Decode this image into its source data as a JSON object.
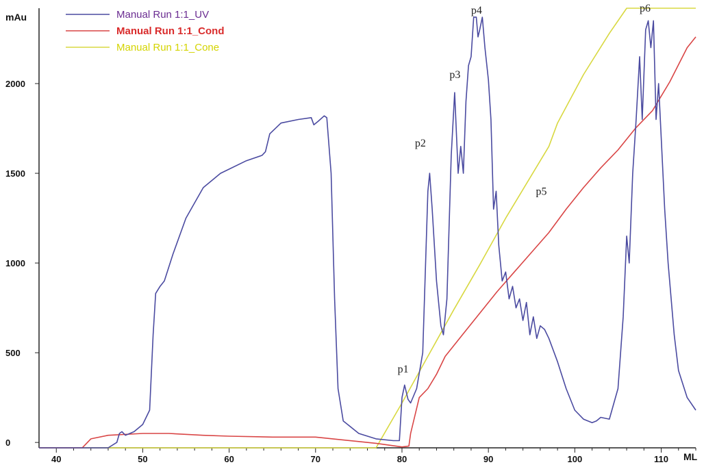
{
  "chart_data": {
    "type": "line",
    "title": "",
    "xlabel": "ML",
    "ylabel": "mAu",
    "xlim": [
      38,
      114
    ],
    "ylim": [
      -30,
      2420
    ],
    "x_ticks": [
      40,
      50,
      60,
      70,
      80,
      90,
      100,
      110
    ],
    "y_ticks": [
      0,
      500,
      1000,
      1500,
      2000
    ],
    "grid": false,
    "legend_position": "top-left",
    "series": [
      {
        "name": "Manual Run 1:1_UV",
        "color": "#4a4aa0",
        "legend_color": "#6a2c91",
        "points": [
          [
            38,
            -30
          ],
          [
            46,
            -30
          ],
          [
            47,
            0
          ],
          [
            47.3,
            50
          ],
          [
            47.6,
            60
          ],
          [
            48,
            40
          ],
          [
            49,
            60
          ],
          [
            50,
            100
          ],
          [
            50.8,
            180
          ],
          [
            51.2,
            600
          ],
          [
            51.5,
            830
          ],
          [
            52,
            870
          ],
          [
            52.5,
            900
          ],
          [
            53.5,
            1050
          ],
          [
            55,
            1250
          ],
          [
            57,
            1420
          ],
          [
            59,
            1500
          ],
          [
            62,
            1570
          ],
          [
            63.8,
            1600
          ],
          [
            64.2,
            1620
          ],
          [
            64.7,
            1720
          ],
          [
            66,
            1780
          ],
          [
            68,
            1800
          ],
          [
            69.5,
            1810
          ],
          [
            69.8,
            1770
          ],
          [
            70.3,
            1790
          ],
          [
            71,
            1820
          ],
          [
            71.3,
            1810
          ],
          [
            71.8,
            1500
          ],
          [
            72.2,
            800
          ],
          [
            72.6,
            300
          ],
          [
            73.2,
            120
          ],
          [
            75,
            50
          ],
          [
            77,
            20
          ],
          [
            79,
            10
          ],
          [
            79.7,
            10
          ],
          [
            80,
            250
          ],
          [
            80.3,
            320
          ],
          [
            80.7,
            240
          ],
          [
            81,
            220
          ],
          [
            81.7,
            300
          ],
          [
            82.4,
            500
          ],
          [
            83,
            1400
          ],
          [
            83.2,
            1500
          ],
          [
            83.5,
            1300
          ],
          [
            84,
            900
          ],
          [
            84.5,
            650
          ],
          [
            84.8,
            600
          ],
          [
            85.2,
            800
          ],
          [
            85.7,
            1600
          ],
          [
            86.1,
            1950
          ],
          [
            86.5,
            1500
          ],
          [
            86.8,
            1650
          ],
          [
            87.1,
            1500
          ],
          [
            87.4,
            1900
          ],
          [
            87.7,
            2100
          ],
          [
            88,
            2150
          ],
          [
            88.3,
            2370
          ],
          [
            88.6,
            2370
          ],
          [
            88.8,
            2260
          ],
          [
            89,
            2300
          ],
          [
            89.3,
            2370
          ],
          [
            89.6,
            2200
          ],
          [
            90,
            2020
          ],
          [
            90.3,
            1800
          ],
          [
            90.6,
            1300
          ],
          [
            90.9,
            1400
          ],
          [
            91.2,
            1100
          ],
          [
            91.6,
            900
          ],
          [
            92,
            950
          ],
          [
            92.4,
            800
          ],
          [
            92.8,
            870
          ],
          [
            93.2,
            750
          ],
          [
            93.6,
            800
          ],
          [
            94,
            680
          ],
          [
            94.4,
            780
          ],
          [
            94.8,
            600
          ],
          [
            95.2,
            700
          ],
          [
            95.6,
            580
          ],
          [
            96,
            650
          ],
          [
            96.5,
            630
          ],
          [
            97,
            580
          ],
          [
            98,
            450
          ],
          [
            99,
            300
          ],
          [
            100,
            180
          ],
          [
            101,
            130
          ],
          [
            102,
            110
          ],
          [
            102.5,
            120
          ],
          [
            103,
            140
          ],
          [
            104,
            130
          ],
          [
            105,
            300
          ],
          [
            105.6,
            700
          ],
          [
            106,
            1150
          ],
          [
            106.3,
            1000
          ],
          [
            106.7,
            1500
          ],
          [
            107.1,
            1800
          ],
          [
            107.5,
            2150
          ],
          [
            107.8,
            1800
          ],
          [
            108.2,
            2300
          ],
          [
            108.5,
            2350
          ],
          [
            108.8,
            2200
          ],
          [
            109.1,
            2350
          ],
          [
            109.4,
            1800
          ],
          [
            109.7,
            2000
          ],
          [
            110,
            1700
          ],
          [
            110.4,
            1300
          ],
          [
            110.8,
            1000
          ],
          [
            111.5,
            600
          ],
          [
            112,
            400
          ],
          [
            113,
            250
          ],
          [
            114,
            180
          ]
        ]
      },
      {
        "name": "Manual Run 1:1_Cond",
        "color": "#d94545",
        "legend_color": "#d92b2b",
        "points": [
          [
            38,
            -30
          ],
          [
            43,
            -30
          ],
          [
            44,
            20
          ],
          [
            46,
            40
          ],
          [
            50,
            50
          ],
          [
            53,
            50
          ],
          [
            57,
            40
          ],
          [
            60,
            35
          ],
          [
            65,
            30
          ],
          [
            70,
            30
          ],
          [
            72,
            20
          ],
          [
            75,
            5
          ],
          [
            77,
            -5
          ],
          [
            80,
            -25
          ],
          [
            80.8,
            -20
          ],
          [
            81,
            50
          ],
          [
            82,
            250
          ],
          [
            83,
            300
          ],
          [
            84,
            380
          ],
          [
            85,
            480
          ],
          [
            87,
            600
          ],
          [
            89,
            720
          ],
          [
            91,
            840
          ],
          [
            93,
            950
          ],
          [
            95,
            1060
          ],
          [
            97,
            1170
          ],
          [
            99,
            1300
          ],
          [
            101,
            1420
          ],
          [
            103,
            1530
          ],
          [
            105,
            1630
          ],
          [
            107,
            1750
          ],
          [
            109,
            1850
          ],
          [
            111,
            2010
          ],
          [
            113,
            2200
          ],
          [
            114,
            2260
          ]
        ]
      },
      {
        "name": "Manual Run 1:1_Cone",
        "color": "#d8d840",
        "legend_color": "#d4d400",
        "points": [
          [
            38,
            -30
          ],
          [
            77,
            -30
          ],
          [
            80,
            220
          ],
          [
            83,
            480
          ],
          [
            86,
            740
          ],
          [
            89,
            990
          ],
          [
            92,
            1250
          ],
          [
            95,
            1490
          ],
          [
            97,
            1650
          ],
          [
            98,
            1780
          ],
          [
            101,
            2050
          ],
          [
            104,
            2280
          ],
          [
            106,
            2420
          ],
          [
            114,
            2420
          ]
        ]
      }
    ],
    "annotations": [
      {
        "text": "p1",
        "x": 79.5,
        "y": 390
      },
      {
        "text": "p2",
        "x": 81.5,
        "y": 1650
      },
      {
        "text": "p3",
        "x": 85.5,
        "y": 2030
      },
      {
        "text": "p4",
        "x": 88.0,
        "y": 2390
      },
      {
        "text": "p5",
        "x": 95.5,
        "y": 1380
      },
      {
        "text": "p6",
        "x": 107.5,
        "y": 2400
      }
    ]
  }
}
